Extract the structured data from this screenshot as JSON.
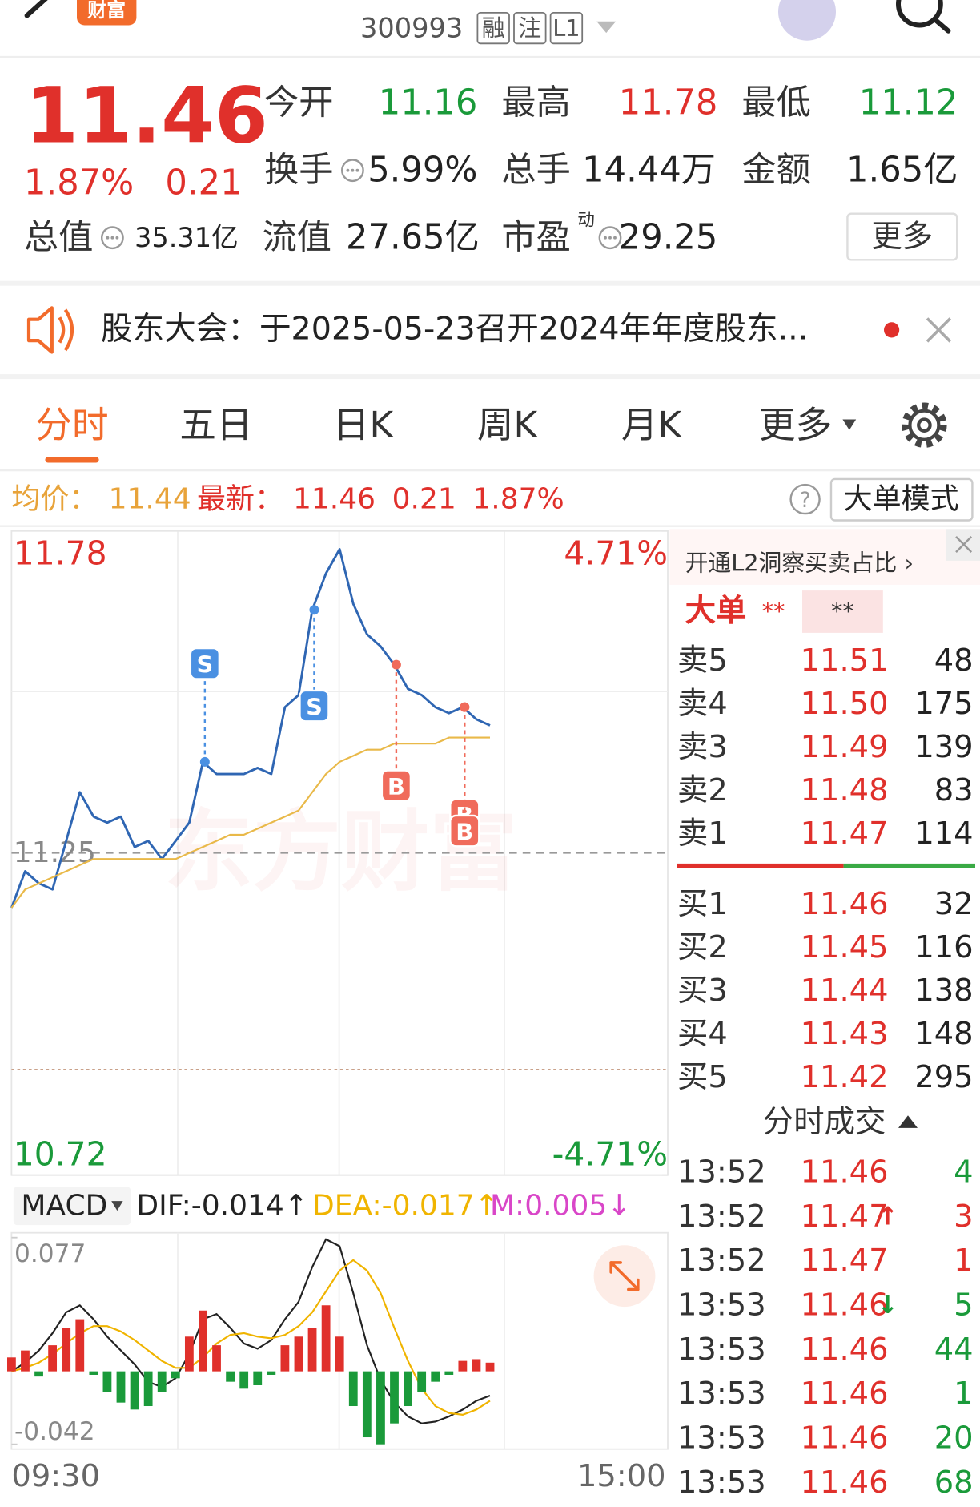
{
  "header": {
    "app_badge": "财富",
    "code": "300993",
    "badges": [
      "融",
      "注",
      "L1"
    ]
  },
  "quote": {
    "price": "11.46",
    "change_pct": "1.87%",
    "change": "0.21",
    "stats": [
      {
        "label": "今开",
        "value": "11.16",
        "color": "#1a9a3a"
      },
      {
        "label": "最高",
        "value": "11.78",
        "color": "#e0302b"
      },
      {
        "label": "最低",
        "value": "11.12",
        "color": "#1a9a3a"
      },
      {
        "label": "换手",
        "value": "5.99%",
        "color": "#222222"
      },
      {
        "label": "总手",
        "value": "14.44万",
        "color": "#222222"
      },
      {
        "label": "金额",
        "value": "1.65亿",
        "color": "#222222"
      },
      {
        "label": "总值",
        "value": "35.31亿",
        "color": "#222222"
      },
      {
        "label": "流值",
        "value": "27.65亿",
        "color": "#222222"
      },
      {
        "label": "市盈",
        "sup": "动",
        "value": "29.25",
        "color": "#222222"
      }
    ],
    "more": "更多"
  },
  "notice": {
    "text": "股东大会：于2025-05-23召开2024年年度股东..."
  },
  "tabs": {
    "items": [
      "分时",
      "五日",
      "日K",
      "周K",
      "月K",
      "更多"
    ],
    "active": 0
  },
  "summary": {
    "avg_label": "均价：",
    "avg": "11.44",
    "last_label": "最新：",
    "last": "11.46",
    "change": "0.21",
    "change_pct": "1.87%",
    "help": "?",
    "mode_button": "大单模式"
  },
  "chart_data": [
    {
      "type": "line",
      "watermark": "东方财富",
      "ylim": [
        10.72,
        11.78
      ],
      "yticks": [
        11.78,
        11.25,
        10.72
      ],
      "y2lim": [
        -4.71,
        4.71
      ],
      "y2ticks": [
        {
          "value": 4.71,
          "label": "4.71%"
        },
        {
          "value": -4.71,
          "label": "-4.71%"
        }
      ],
      "series": [
        {
          "color": "#2f66b3",
          "values": [
            11.16,
            11.22,
            11.2,
            11.19,
            11.27,
            11.35,
            11.31,
            11.3,
            11.31,
            11.26,
            11.27,
            11.24,
            11.27,
            11.3,
            11.4,
            11.38,
            11.38,
            11.38,
            11.39,
            11.38,
            11.49,
            11.51,
            11.65,
            11.71,
            11.75,
            11.66,
            11.61,
            11.59,
            11.56,
            11.52,
            11.51,
            11.49,
            11.48,
            11.49,
            11.47,
            11.46
          ]
        },
        {
          "color": "#e9b949",
          "values": [
            11.16,
            11.19,
            11.2,
            11.21,
            11.22,
            11.23,
            11.24,
            11.24,
            11.24,
            11.24,
            11.24,
            11.24,
            11.24,
            11.25,
            11.26,
            11.27,
            11.28,
            11.28,
            11.29,
            11.3,
            11.31,
            11.32,
            11.35,
            11.38,
            11.4,
            11.41,
            11.42,
            11.42,
            11.43,
            11.43,
            11.43,
            11.43,
            11.44,
            11.44,
            11.44,
            11.44
          ]
        }
      ],
      "markers": [
        {
          "text": "S",
          "price": 11.4,
          "color": "#4a90e2"
        },
        {
          "text": "S",
          "price": 11.65,
          "color": "#4a90e2"
        },
        {
          "text": "B",
          "price": 11.56,
          "color": "#f06b5b"
        },
        {
          "text": "B",
          "price": 11.49,
          "color": "#f06b5b"
        },
        {
          "text": "B",
          "price": 11.49,
          "color": "#f06b5b"
        }
      ]
    },
    {
      "type": "macd",
      "title": "MACD",
      "ylim": [
        -0.042,
        0.077
      ],
      "yticks": [
        0.077,
        -0.042
      ],
      "x_labels": [
        "09:30",
        "15:00"
      ],
      "series": [
        {
          "name": "DIF:-0.014↑",
          "color": "#222222",
          "values": [
            0,
            0.005,
            0.012,
            0.022,
            0.034,
            0.038,
            0.03,
            0.02,
            0.012,
            0.004,
            -0.006,
            -0.009,
            -0.004,
            0.01,
            0.03,
            0.033,
            0.025,
            0.016,
            0.013,
            0.018,
            0.03,
            0.04,
            0.06,
            0.076,
            0.072,
            0.045,
            0.015,
            -0.005,
            -0.018,
            -0.026,
            -0.03,
            -0.029,
            -0.026,
            -0.022,
            -0.017,
            -0.014
          ]
        },
        {
          "name": "DEA:-0.017↑",
          "color": "#f0b400",
          "values": [
            0,
            0.002,
            0.005,
            0.01,
            0.016,
            0.022,
            0.026,
            0.026,
            0.023,
            0.018,
            0.012,
            0.006,
            0.002,
            0.002,
            0.008,
            0.016,
            0.021,
            0.022,
            0.02,
            0.019,
            0.021,
            0.026,
            0.034,
            0.046,
            0.058,
            0.064,
            0.058,
            0.045,
            0.025,
            0.006,
            -0.01,
            -0.02,
            -0.024,
            -0.025,
            -0.022,
            -0.017
          ]
        },
        {
          "name": "M:0.005↓",
          "color": "#d946c8",
          "kind": "bar",
          "up_color": "#e0302b",
          "down_color": "#1a9a3a",
          "values": [
            0.008,
            0.012,
            -0.003,
            0.015,
            0.025,
            0.03,
            -0.002,
            -0.012,
            -0.018,
            -0.022,
            -0.02,
            -0.012,
            -0.004,
            0.02,
            0.035,
            0.015,
            -0.006,
            -0.01,
            -0.008,
            -0.002,
            0.015,
            0.02,
            0.025,
            0.038,
            0.02,
            -0.02,
            -0.038,
            -0.042,
            -0.03,
            -0.02,
            -0.012,
            -0.006,
            -0.002,
            0.006,
            0.007,
            0.005
          ]
        }
      ]
    }
  ],
  "order_book": {
    "promo": "开通L2洞察买卖占比 ›",
    "big_order_label": "大单",
    "big_order_values": [
      "**",
      "**"
    ],
    "asks": [
      [
        "卖5",
        "11.51",
        "48"
      ],
      [
        "卖4",
        "11.50",
        "175"
      ],
      [
        "卖3",
        "11.49",
        "139"
      ],
      [
        "卖2",
        "11.48",
        "83"
      ],
      [
        "卖1",
        "11.47",
        "114"
      ]
    ],
    "bids": [
      [
        "买1",
        "11.46",
        "32"
      ],
      [
        "买2",
        "11.45",
        "116"
      ],
      [
        "买3",
        "11.44",
        "138"
      ],
      [
        "买4",
        "11.43",
        "148"
      ],
      [
        "买5",
        "11.42",
        "295"
      ]
    ]
  },
  "trades": {
    "title": "分时成交",
    "rows": [
      {
        "time": "13:52",
        "price": "11.46",
        "volume": "4",
        "color": "#1a9a3a"
      },
      {
        "time": "13:52",
        "price": "11.47",
        "arrow": "↑",
        "arrow_color": "#e0302b",
        "volume": "3",
        "color": "#e0302b"
      },
      {
        "time": "13:52",
        "price": "11.47",
        "volume": "1",
        "color": "#e0302b"
      },
      {
        "time": "13:53",
        "price": "11.46",
        "arrow": "↓",
        "arrow_color": "#1a9a3a",
        "volume": "5",
        "color": "#1a9a3a"
      },
      {
        "time": "13:53",
        "price": "11.46",
        "volume": "44",
        "color": "#1a9a3a"
      },
      {
        "time": "13:53",
        "price": "11.46",
        "volume": "1",
        "color": "#1a9a3a"
      },
      {
        "time": "13:53",
        "price": "11.46",
        "volume": "20",
        "color": "#1a9a3a"
      },
      {
        "time": "13:53",
        "price": "11.46",
        "volume": "68",
        "color": "#1a9a3a"
      }
    ]
  }
}
